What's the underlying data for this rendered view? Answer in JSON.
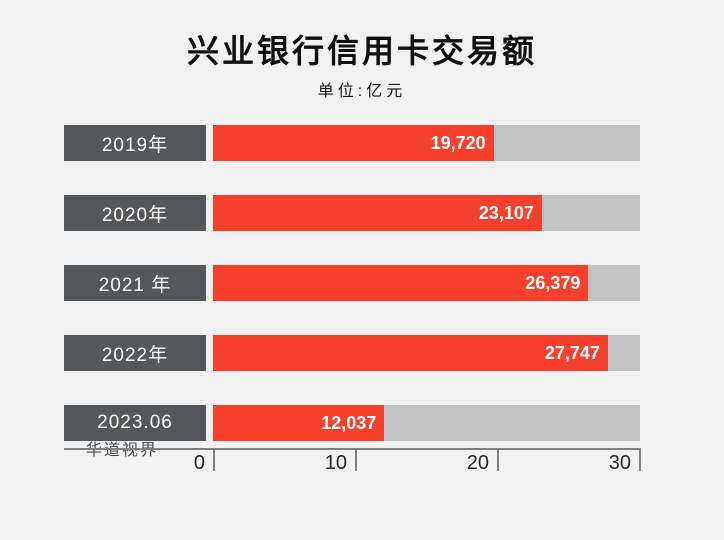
{
  "header": {
    "title": "兴业银行信用卡交易额",
    "subtitle": "单位:亿元"
  },
  "watermark": "华道视界",
  "colors": {
    "background": "#f1f1f1",
    "bar": "#f5402d",
    "track": "#c2c2c2",
    "category_box": "#565759",
    "axis": "#7f7f7f",
    "title_text": "#0f0f0f",
    "value_text": "#ffffff"
  },
  "chart_data": {
    "type": "bar",
    "orientation": "horizontal",
    "title": "兴业银行信用卡交易额",
    "unit_label": "单位:亿元",
    "categories": [
      "2019年",
      "2020年",
      "2021 年",
      "2022年",
      "2023.06"
    ],
    "values": [
      19720,
      23107,
      26379,
      27747,
      12037
    ],
    "value_labels": [
      "19,720",
      "23,107",
      "26,379",
      "27,747",
      "12,037"
    ],
    "xlim": [
      0,
      30000
    ],
    "xtick_positions": [
      0,
      10000,
      20000,
      30000
    ],
    "xtick_labels": [
      "0",
      "10",
      "20",
      "30"
    ],
    "grid": false,
    "legend": false
  }
}
